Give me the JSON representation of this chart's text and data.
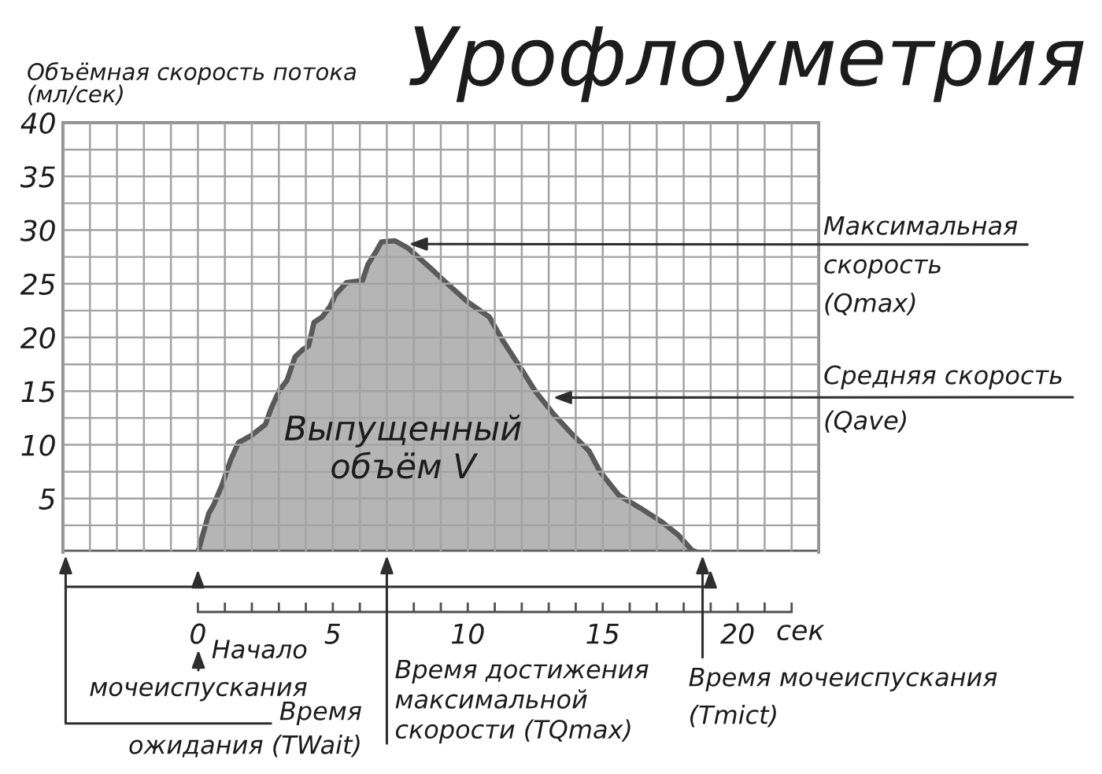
{
  "chart_data": {
    "type": "area",
    "title": "Урофлоуметрия",
    "ylabel": "Объёмная скорость потока\n(мл/сек)",
    "xlabel": "сек",
    "x": [
      -5,
      0,
      0.4,
      0.6,
      0.9,
      1.2,
      1.5,
      2.0,
      2.5,
      2.7,
      3.0,
      3.3,
      3.6,
      3.9,
      4.1,
      4.3,
      4.6,
      4.9,
      5.1,
      5.5,
      6.1,
      6.3,
      6.6,
      6.8,
      7.3,
      7.8,
      8.6,
      9.2,
      10.0,
      10.8,
      11.3,
      12.0,
      12.5,
      13.2,
      13.9,
      14.5,
      14.9,
      15.6,
      16.4,
      17.2,
      17.8,
      18.3,
      18.5,
      23
    ],
    "values": [
      0,
      0,
      3.6,
      4.5,
      6.3,
      8.5,
      10.2,
      10.9,
      11.9,
      13.3,
      15.0,
      16.0,
      18.2,
      18.9,
      19.2,
      21.4,
      21.9,
      22.9,
      24.0,
      25.1,
      25.3,
      26.8,
      28.0,
      28.9,
      29.0,
      28.3,
      26.5,
      25.1,
      23.3,
      21.9,
      19.7,
      17.0,
      15.0,
      12.8,
      10.9,
      9.4,
      7.5,
      5.3,
      4.1,
      2.8,
      1.6,
      0.2,
      0,
      0
    ],
    "color": "#b5b5b5",
    "xlim": [
      -5,
      23
    ],
    "ylim": [
      0,
      40
    ],
    "xticks": [
      0,
      {
        "value": 1,
        "label": null
      },
      {
        "value": 2,
        "label": null
      },
      {
        "value": 3,
        "label": null
      },
      {
        "value": 4,
        "label": null
      },
      5,
      {
        "value": 6,
        "label": null
      },
      {
        "value": 7,
        "label": null
      },
      {
        "value": 8,
        "label": null
      },
      {
        "value": 9,
        "label": null
      },
      10,
      {
        "value": 11,
        "label": null
      },
      {
        "value": 12,
        "label": null
      },
      {
        "value": 13,
        "label": null
      },
      {
        "value": 14,
        "label": null
      },
      15,
      {
        "value": 16,
        "label": null
      },
      {
        "value": 17,
        "label": null
      },
      {
        "value": 18,
        "label": null
      },
      {
        "value": 19,
        "label": null
      },
      20,
      {
        "value": 21,
        "label": null
      },
      {
        "value": 22,
        "label": null
      }
    ],
    "yticks": [
      {
        "value": 0,
        "label": null
      },
      {
        "value": 2.5,
        "label": null
      },
      5,
      {
        "value": 7.5,
        "label": null
      },
      10,
      {
        "value": 12.5,
        "label": null
      },
      15,
      {
        "value": 17.5,
        "label": null
      },
      20,
      {
        "value": 22.5,
        "label": null
      },
      25,
      {
        "value": 27.5,
        "label": null
      },
      30,
      {
        "value": 32.5,
        "label": null
      },
      35,
      {
        "value": 37.5,
        "label": null
      },
      40
    ],
    "grid": true,
    "annotations": [
      "Выпущенный\nобъём V",
      {
        "text": "Максимальная\nскорость\n(Qmax)",
        "x": 7.7,
        "y": 28.7
      },
      {
        "text": "Средняя скорость\n(Qave)",
        "x": 13.1,
        "y": 14.4
      },
      "Начало\nмочеиспускания",
      {
        "text": "Время достижения\nмаксимальной\nскорости (TQmax)",
        "x": 7.0,
        "y": 0
      },
      {
        "text": "Время мочеиспускания\n(Tmict)",
        "x": 18.7,
        "y": 0
      },
      {
        "text": "Время\nожидания (TWait)",
        "x": -4.9,
        "y": 0
      }
    ]
  }
}
